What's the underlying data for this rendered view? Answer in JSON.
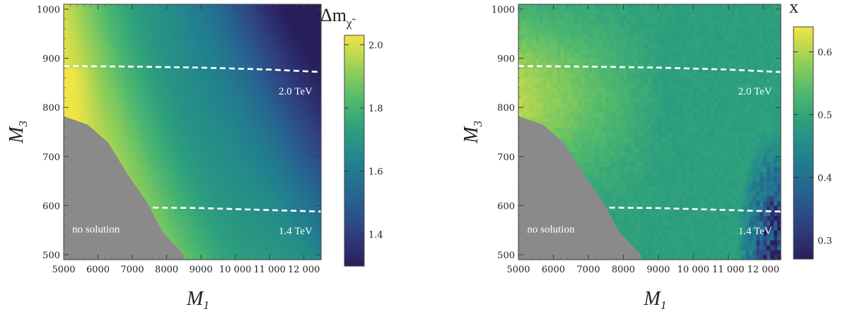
{
  "chart_data": [
    {
      "type": "heatmap",
      "xlabel_main": "M",
      "xlabel_sub": "1",
      "ylabel_main": "M",
      "ylabel_sub": "3",
      "xlim": [
        5000,
        12500
      ],
      "ylim": [
        490,
        1010
      ],
      "x_ticks": [
        5000,
        6000,
        7000,
        8000,
        9000,
        10000,
        11000,
        12000
      ],
      "x_tick_labels": [
        "5000",
        "6000",
        "7000",
        "8000",
        "9000",
        "10 000",
        "11 000",
        "12 000"
      ],
      "y_ticks": [
        500,
        600,
        700,
        800,
        900,
        1000
      ],
      "colorbar": {
        "title": "Δm",
        "title_sub": "χ̃",
        "range": [
          1.3,
          2.03
        ],
        "ticks": [
          1.4,
          1.6,
          1.8,
          2.0
        ],
        "tick_labels": [
          "1.4",
          "1.6",
          "1.8",
          "2.0"
        ]
      },
      "contours": [
        {
          "label": "2.0 TeV",
          "points": [
            [
              5000,
              884
            ],
            [
              7000,
              883
            ],
            [
              9000,
              881
            ],
            [
              11000,
              877
            ],
            [
              12500,
              872
            ]
          ]
        },
        {
          "label": "1.4 TeV",
          "points": [
            [
              7600,
              596
            ],
            [
              9000,
              595
            ],
            [
              11000,
              591
            ],
            [
              12500,
              588
            ]
          ]
        }
      ],
      "excluded_region_label": "no solution",
      "excluded_boundary": [
        [
          5000,
          782
        ],
        [
          5700,
          765
        ],
        [
          6300,
          728
        ],
        [
          6900,
          660
        ],
        [
          7400,
          610
        ],
        [
          7900,
          545
        ],
        [
          8500,
          500
        ]
      ],
      "field_model": "value decreases from ~2.0 at (5000, 820) to ~1.3 at (12500, 1000)"
    },
    {
      "type": "heatmap",
      "xlabel_main": "M",
      "xlabel_sub": "1",
      "ylabel_main": "M",
      "ylabel_sub": "3",
      "xlim": [
        5000,
        12500
      ],
      "ylim": [
        490,
        1010
      ],
      "x_ticks": [
        5000,
        6000,
        7000,
        8000,
        9000,
        10000,
        11000,
        12000
      ],
      "x_tick_labels": [
        "5000",
        "6000",
        "7000",
        "8000",
        "9000",
        "10 000",
        "11 000",
        "12 000"
      ],
      "y_ticks": [
        500,
        600,
        700,
        800,
        900,
        1000
      ],
      "colorbar": {
        "title": "x",
        "title_sub": "",
        "range": [
          0.27,
          0.64
        ],
        "ticks": [
          0.3,
          0.4,
          0.5,
          0.6
        ],
        "tick_labels": [
          "0.3",
          "0.4",
          "0.5",
          "0.6"
        ]
      },
      "contours": [
        {
          "label": "2.0 TeV",
          "points": [
            [
              5000,
              884
            ],
            [
              7000,
              883
            ],
            [
              9000,
              881
            ],
            [
              11000,
              877
            ],
            [
              12500,
              872
            ]
          ]
        },
        {
          "label": "1.4 TeV",
          "points": [
            [
              7600,
              596
            ],
            [
              9000,
              595
            ],
            [
              11000,
              591
            ],
            [
              12500,
              588
            ]
          ]
        }
      ],
      "excluded_region_label": "no solution",
      "excluded_boundary": [
        [
          5000,
          782
        ],
        [
          5700,
          765
        ],
        [
          6300,
          728
        ],
        [
          6900,
          660
        ],
        [
          7400,
          610
        ],
        [
          7900,
          545
        ],
        [
          8500,
          500
        ]
      ],
      "field_model": "~0.6 near (5000, 820) falling to plateau ~0.49; noisy dark patch ~0.3 near (12000, 520)"
    }
  ]
}
